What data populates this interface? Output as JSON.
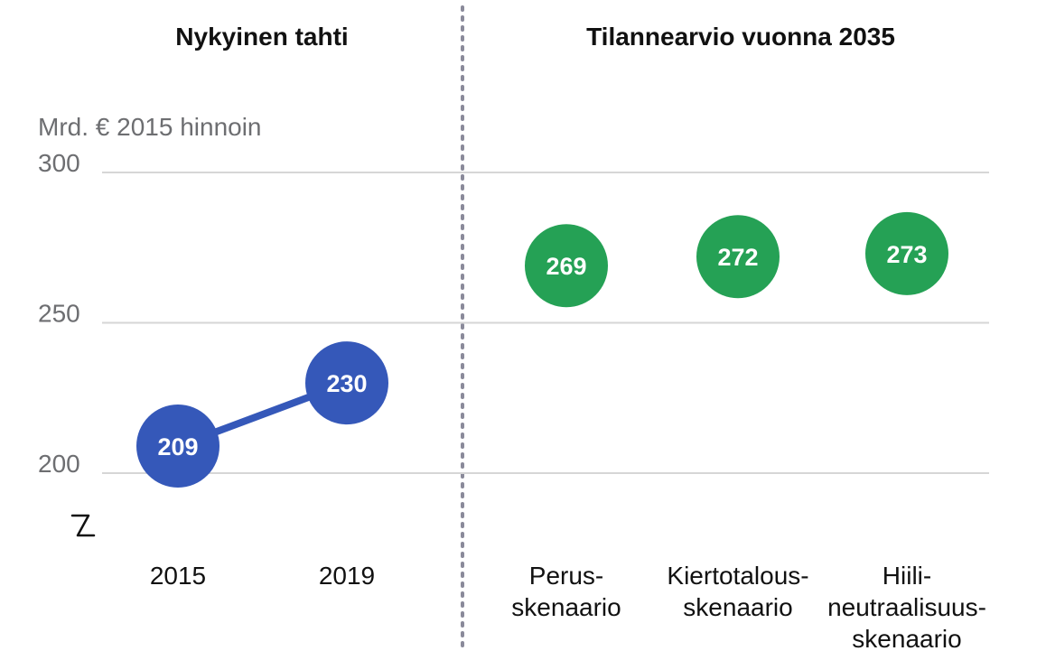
{
  "chart_data": {
    "type": "scatter",
    "ylabel": "Mrd. € 2015 hinnoin",
    "ylim": [
      180,
      300
    ],
    "yticks": [
      200,
      250,
      300
    ],
    "grid": true,
    "axis_break": true,
    "colors": {
      "current": "#3558b9",
      "scenario": "#25a155"
    },
    "panels": [
      {
        "title": "Nykyinen tahti",
        "connected": true,
        "points": [
          {
            "label": "2015",
            "value": 209
          },
          {
            "label": "2019",
            "value": 230
          }
        ]
      },
      {
        "title": "Tilannearvio vuonna 2035",
        "connected": false,
        "points": [
          {
            "label": [
              "Perus-",
              "skenaario"
            ],
            "value": 269
          },
          {
            "label": [
              "Kiertotalous-",
              "skenaario"
            ],
            "value": 272
          },
          {
            "label": [
              "Hiili-",
              "neutraalisuus-",
              "skenaario"
            ],
            "value": 273
          }
        ]
      }
    ]
  }
}
